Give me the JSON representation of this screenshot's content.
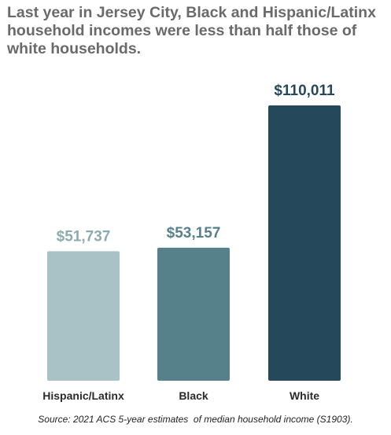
{
  "title": "Last year in Jersey City, Black and Hispanic/Latinx household incomes were less than half those of white households.",
  "source": "Source: 2021 ACS 5-year estimates  of median household income (S1903).",
  "chart_data": {
    "type": "bar",
    "categories": [
      "Hispanic/Latinx",
      "Black",
      "White"
    ],
    "values": [
      51737,
      53157,
      110011
    ],
    "value_labels": [
      "$51,737",
      "$53,157",
      "$110,011"
    ],
    "colors": [
      "#a8c2c6",
      "#56818a",
      "#25485a"
    ],
    "label_colors": [
      "#8aabb0",
      "#56818a",
      "#25485a"
    ],
    "title": "Last year in Jersey City, Black and Hispanic/Latinx household incomes were less than half those of white households.",
    "xlabel": "",
    "ylabel": "",
    "ylim": [
      0,
      110011
    ],
    "grid": false,
    "legend": "none"
  }
}
